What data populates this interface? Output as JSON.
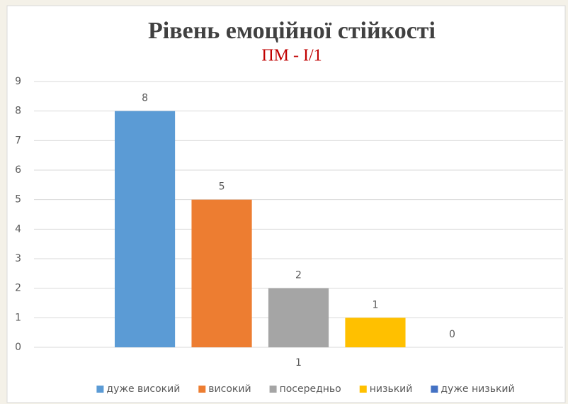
{
  "chart_data": {
    "type": "bar",
    "title": "Рівень емоційної стійкості",
    "subtitle": "ПМ - І/1",
    "categories": [
      "1"
    ],
    "series": [
      {
        "name": "дуже високий",
        "color": "#5b9bd5",
        "values": [
          8
        ]
      },
      {
        "name": "високий",
        "color": "#ed7d31",
        "values": [
          5
        ]
      },
      {
        "name": "посередньо",
        "color": "#a5a5a5",
        "values": [
          2
        ]
      },
      {
        "name": "низький",
        "color": "#ffc000",
        "values": [
          1
        ]
      },
      {
        "name": "дуже низький",
        "color": "#4472c4",
        "values": [
          0
        ]
      }
    ],
    "ylim": [
      0,
      9
    ],
    "yticks": [
      0,
      1,
      2,
      3,
      4,
      5,
      6,
      7,
      8,
      9
    ],
    "grid": true,
    "legend": "bottom"
  }
}
